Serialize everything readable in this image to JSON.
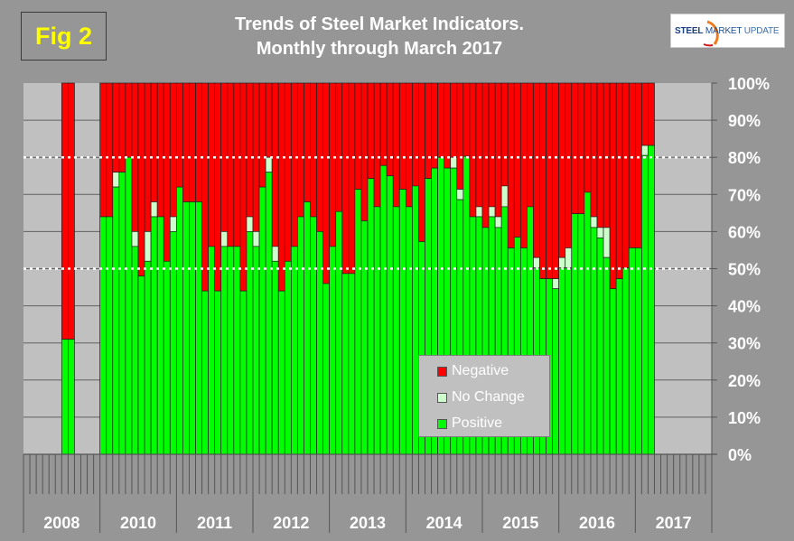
{
  "figure_label": "Fig 2",
  "title_line1": "Trends of Steel Market Indicators.",
  "title_line2": "Monthly through  March 2017",
  "logo": {
    "word1": "STEEL",
    "word2": "MARKET",
    "word3": "UPDATE"
  },
  "colors": {
    "negative": "#ff0000",
    "no_change": "#ccffcc",
    "positive": "#00ff00",
    "plot_bg": "#c0c0c0",
    "page_bg": "#969696"
  },
  "chart_data": {
    "type": "bar",
    "stacked": true,
    "title": "Trends of Steel Market Indicators. Monthly through  March 2017",
    "ylabel": "",
    "xlabel": "",
    "ylim": [
      0,
      100
    ],
    "y_ticks": [
      "0%",
      "10%",
      "20%",
      "30%",
      "40%",
      "50%",
      "60%",
      "70%",
      "80%",
      "90%",
      "100%"
    ],
    "reference_lines": [
      50,
      80
    ],
    "groups": [
      "2008",
      "2010",
      "2011",
      "2012",
      "2013",
      "2014",
      "2015",
      "2016",
      "2017"
    ],
    "months_per_group": 12,
    "legend": [
      "Negative",
      "No Change",
      "Positive"
    ],
    "legend_position": "bottom-center",
    "series_order": [
      "Positive",
      "No Change",
      "Negative"
    ],
    "values": {
      "2008": [
        null,
        null,
        null,
        null,
        null,
        null,
        [
          31,
          0
        ],
        [
          31,
          0
        ],
        null,
        null,
        null,
        null
      ],
      "2010": [
        [
          64,
          0
        ],
        [
          64,
          0
        ],
        [
          72,
          4
        ],
        [
          76,
          0
        ],
        [
          80,
          0
        ],
        [
          56,
          4
        ],
        [
          48,
          0
        ],
        [
          52,
          8
        ],
        [
          64,
          4
        ],
        [
          64,
          0
        ],
        [
          52,
          0
        ],
        [
          60,
          4
        ]
      ],
      "2011": [
        [
          72,
          0
        ],
        [
          68,
          0
        ],
        [
          68,
          0
        ],
        [
          68,
          0
        ],
        [
          44,
          0
        ],
        [
          56,
          0
        ],
        [
          44,
          0
        ],
        [
          56,
          4
        ],
        [
          56,
          0
        ],
        [
          56,
          0
        ],
        [
          44,
          0
        ],
        [
          60,
          4
        ]
      ],
      "2012": [
        [
          56,
          4
        ],
        [
          72,
          0
        ],
        [
          76,
          4
        ],
        [
          52,
          4
        ],
        [
          44,
          0
        ],
        [
          52,
          0
        ],
        [
          56,
          0
        ],
        [
          64,
          0
        ],
        [
          68,
          0
        ],
        [
          64,
          0
        ],
        [
          60,
          0
        ],
        [
          46,
          0
        ]
      ],
      "2013": [
        [
          56,
          0
        ],
        [
          65.4,
          0
        ],
        [
          48.7,
          0
        ],
        [
          48.7,
          0
        ],
        [
          71.4,
          0
        ],
        [
          62.9,
          0
        ],
        [
          74.3,
          0
        ],
        [
          66.7,
          0
        ],
        [
          77.8,
          0
        ],
        [
          75,
          0
        ],
        [
          66.7,
          0
        ],
        [
          71.4,
          0
        ]
      ],
      "2014": [
        [
          66.7,
          0
        ],
        [
          72.3,
          0
        ],
        [
          57.3,
          0
        ],
        [
          74.3,
          0
        ],
        [
          77.1,
          0
        ],
        [
          80,
          0
        ],
        [
          77.1,
          0
        ],
        [
          77.1,
          2.9
        ],
        [
          68.6,
          2.8
        ],
        [
          80.3,
          0
        ],
        [
          64,
          0
        ],
        [
          64,
          2.7
        ]
      ],
      "2015": [
        [
          61.1,
          0
        ],
        [
          64,
          2.7
        ],
        [
          61.1,
          2.9
        ],
        [
          66.7,
          5.6
        ],
        [
          55.6,
          0
        ],
        [
          58.5,
          0
        ],
        [
          55.6,
          0
        ],
        [
          66.7,
          0
        ],
        [
          50.2,
          2.8
        ],
        [
          47.3,
          0
        ],
        [
          47.3,
          0
        ],
        [
          44.6,
          2.7
        ]
      ],
      "2016": [
        [
          50.2,
          2.8
        ],
        [
          50.2,
          5.4
        ],
        [
          64.8,
          0
        ],
        [
          64.8,
          0
        ],
        [
          70.6,
          0
        ],
        [
          61.1,
          2.9
        ],
        [
          58.3,
          2.8
        ],
        [
          53,
          8.1
        ],
        [
          44.6,
          0
        ],
        [
          47.3,
          0
        ],
        [
          50.2,
          0
        ],
        [
          55.6,
          0
        ]
      ],
      "2017": [
        [
          55.6,
          0
        ],
        [
          80.5,
          2.7
        ],
        [
          83.2,
          0
        ],
        null,
        null,
        null,
        null,
        null,
        null,
        null,
        null,
        null
      ]
    },
    "value_note": "each entry is [positive %, no change %]; negative % = 100 - positive - no change"
  }
}
